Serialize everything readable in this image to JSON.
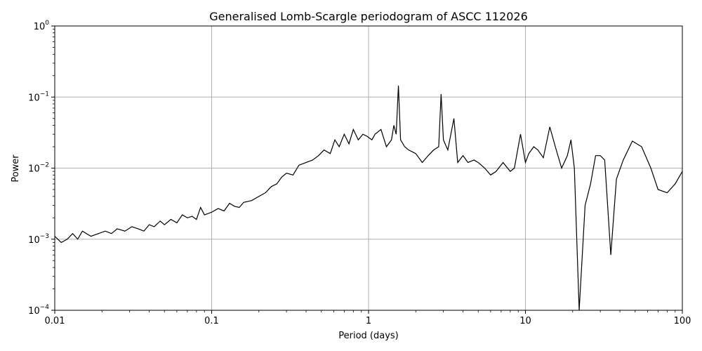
{
  "chart_data": {
    "type": "line",
    "title": "Generalised Lomb-Scargle periodogram of ASCC 112026",
    "xlabel": "Period (days)",
    "ylabel": "Power",
    "x_scale": "log",
    "y_scale": "log",
    "xlim": [
      0.01,
      100
    ],
    "ylim": [
      0.0001,
      1
    ],
    "grid": true,
    "x_ticks": [
      {
        "value": 0.01,
        "label": "0.01"
      },
      {
        "value": 0.1,
        "label": "0.1"
      },
      {
        "value": 1,
        "label": "1"
      },
      {
        "value": 10,
        "label": "10"
      },
      {
        "value": 100,
        "label": "100"
      }
    ],
    "y_ticks": [
      {
        "value": 0.0001,
        "base": "10",
        "exp": "−4"
      },
      {
        "value": 0.001,
        "base": "10",
        "exp": "−3"
      },
      {
        "value": 0.01,
        "base": "10",
        "exp": "−2"
      },
      {
        "value": 0.1,
        "base": "10",
        "exp": "−1"
      },
      {
        "value": 1,
        "base": "10",
        "exp": "0"
      }
    ],
    "series": [
      {
        "color": "#000000",
        "points": [
          [
            0.01,
            0.0011
          ],
          [
            0.011,
            0.0009
          ],
          [
            0.012,
            0.001
          ],
          [
            0.013,
            0.0012
          ],
          [
            0.014,
            0.001
          ],
          [
            0.015,
            0.0013
          ],
          [
            0.017,
            0.0011
          ],
          [
            0.019,
            0.0012
          ],
          [
            0.021,
            0.0013
          ],
          [
            0.023,
            0.0012
          ],
          [
            0.025,
            0.0014
          ],
          [
            0.028,
            0.0013
          ],
          [
            0.031,
            0.0015
          ],
          [
            0.034,
            0.0014
          ],
          [
            0.037,
            0.0013
          ],
          [
            0.04,
            0.0016
          ],
          [
            0.043,
            0.0015
          ],
          [
            0.047,
            0.0018
          ],
          [
            0.05,
            0.0016
          ],
          [
            0.055,
            0.0019
          ],
          [
            0.06,
            0.0017
          ],
          [
            0.065,
            0.0022
          ],
          [
            0.07,
            0.002
          ],
          [
            0.075,
            0.0021
          ],
          [
            0.08,
            0.0019
          ],
          [
            0.085,
            0.0028
          ],
          [
            0.09,
            0.0022
          ],
          [
            0.1,
            0.0024
          ],
          [
            0.11,
            0.0027
          ],
          [
            0.12,
            0.0025
          ],
          [
            0.13,
            0.0032
          ],
          [
            0.14,
            0.0029
          ],
          [
            0.15,
            0.0028
          ],
          [
            0.16,
            0.0033
          ],
          [
            0.18,
            0.0035
          ],
          [
            0.2,
            0.004
          ],
          [
            0.22,
            0.0045
          ],
          [
            0.24,
            0.0055
          ],
          [
            0.26,
            0.006
          ],
          [
            0.28,
            0.0075
          ],
          [
            0.3,
            0.0085
          ],
          [
            0.33,
            0.008
          ],
          [
            0.36,
            0.011
          ],
          [
            0.4,
            0.012
          ],
          [
            0.44,
            0.013
          ],
          [
            0.48,
            0.015
          ],
          [
            0.52,
            0.018
          ],
          [
            0.57,
            0.016
          ],
          [
            0.61,
            0.025
          ],
          [
            0.65,
            0.02
          ],
          [
            0.7,
            0.03
          ],
          [
            0.75,
            0.022
          ],
          [
            0.8,
            0.035
          ],
          [
            0.86,
            0.025
          ],
          [
            0.92,
            0.03
          ],
          [
            0.98,
            0.028
          ],
          [
            1.05,
            0.025
          ],
          [
            1.1,
            0.03
          ],
          [
            1.2,
            0.035
          ],
          [
            1.3,
            0.02
          ],
          [
            1.4,
            0.025
          ],
          [
            1.45,
            0.04
          ],
          [
            1.5,
            0.03
          ],
          [
            1.55,
            0.145
          ],
          [
            1.6,
            0.025
          ],
          [
            1.7,
            0.02
          ],
          [
            1.8,
            0.018
          ],
          [
            1.9,
            0.017
          ],
          [
            2.0,
            0.016
          ],
          [
            2.2,
            0.012
          ],
          [
            2.4,
            0.015
          ],
          [
            2.6,
            0.018
          ],
          [
            2.8,
            0.02
          ],
          [
            2.9,
            0.11
          ],
          [
            3.0,
            0.025
          ],
          [
            3.2,
            0.018
          ],
          [
            3.5,
            0.05
          ],
          [
            3.7,
            0.012
          ],
          [
            4.0,
            0.015
          ],
          [
            4.3,
            0.012
          ],
          [
            4.7,
            0.013
          ],
          [
            5.0,
            0.012
          ],
          [
            5.5,
            0.01
          ],
          [
            6.0,
            0.008
          ],
          [
            6.5,
            0.009
          ],
          [
            7.2,
            0.012
          ],
          [
            8.0,
            0.009
          ],
          [
            8.5,
            0.01
          ],
          [
            9.3,
            0.03
          ],
          [
            10.0,
            0.012
          ],
          [
            10.5,
            0.016
          ],
          [
            11.3,
            0.02
          ],
          [
            12.0,
            0.018
          ],
          [
            13.0,
            0.014
          ],
          [
            14.3,
            0.038
          ],
          [
            15.5,
            0.02
          ],
          [
            17.0,
            0.01
          ],
          [
            18.5,
            0.015
          ],
          [
            19.5,
            0.025
          ],
          [
            20.5,
            0.01
          ],
          [
            22.0,
            0.0001
          ],
          [
            24.0,
            0.003
          ],
          [
            26.0,
            0.006
          ],
          [
            28.0,
            0.015
          ],
          [
            30.0,
            0.015
          ],
          [
            32.0,
            0.013
          ],
          [
            35.0,
            0.0006
          ],
          [
            38.0,
            0.007
          ],
          [
            42.0,
            0.013
          ],
          [
            48.0,
            0.024
          ],
          [
            55.0,
            0.02
          ],
          [
            63.0,
            0.01
          ],
          [
            70.0,
            0.005
          ],
          [
            80.0,
            0.0045
          ],
          [
            90.0,
            0.006
          ],
          [
            100.0,
            0.009
          ]
        ]
      }
    ]
  }
}
